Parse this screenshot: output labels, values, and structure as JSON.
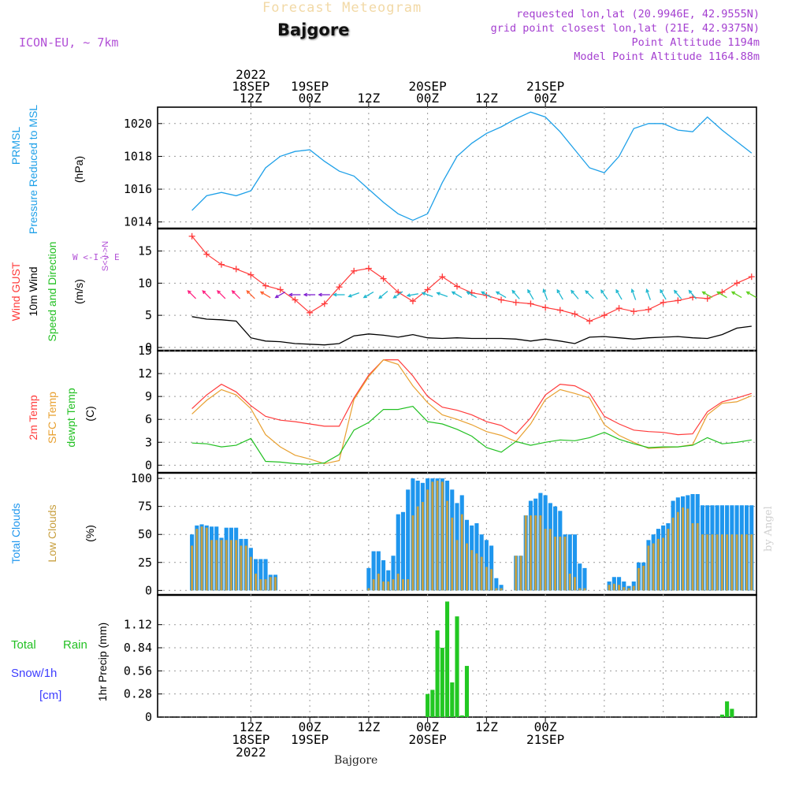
{
  "header": {
    "title": "Forecast Meteogram",
    "model": "ICON-EU, ~ 7km",
    "location": "Bajgore",
    "requested": "requested lon,lat (20.9946E, 42.9555N)",
    "grid_point": "grid point closest lon,lat (21E, 42.9375N)",
    "point_altitude": "Point Altitude 1194m",
    "model_altitude": "Model Point Altitude 1164.88m"
  },
  "footer": {
    "location": "Bajgore",
    "signature": "by Angel"
  },
  "time_axis": {
    "top": [
      {
        "label": [
          "2022",
          "18SEP",
          "12Z"
        ]
      },
      {
        "label": [
          "19SEP",
          "00Z"
        ]
      },
      {
        "label": [
          "12Z"
        ]
      },
      {
        "label": [
          "20SEP",
          "00Z"
        ]
      },
      {
        "label": [
          "12Z"
        ]
      },
      {
        "label": [
          "21SEP",
          "00Z"
        ]
      }
    ],
    "bottom": [
      {
        "label": [
          "12Z",
          "18SEP",
          "2022"
        ]
      },
      {
        "label": [
          "00Z",
          "19SEP"
        ]
      },
      {
        "label": [
          "12Z"
        ]
      },
      {
        "label": [
          "00Z",
          "20SEP"
        ]
      },
      {
        "label": [
          "12Z"
        ]
      },
      {
        "label": [
          "00Z",
          "21SEP"
        ]
      }
    ]
  },
  "panel_labels": {
    "pressure": {
      "lines": [
        "PRMSL",
        "Pressure Reduced to MSL"
      ],
      "unit": "(hPa)"
    },
    "wind": {
      "lines": [
        "Wind GUST",
        "10m Wind",
        "Speed and Direction"
      ],
      "unit": "(m/s)",
      "compass_ns": "S<-I->N",
      "compass_we": "W <-I-> E"
    },
    "temp": {
      "lines": [
        "2m Temp",
        "SFC Temp",
        "dewpt Temp"
      ],
      "unit": "(C)"
    },
    "clouds": {
      "lines": [
        "Total Clouds",
        "Low Clouds"
      ],
      "unit": "(%)"
    },
    "precip": {
      "lines": [
        "Total",
        "Rain",
        "Snow/1h",
        "[cm]"
      ],
      "unit": "1hr Precip (mm)"
    }
  },
  "colors": {
    "pressure": "#1ea0e8",
    "gust": "#ff3b3b",
    "wind": "#000000",
    "temp2m": "#ff3b3b",
    "tempsfc": "#e8a030",
    "dewpt": "#22c022",
    "total_clouds": "#1e96ee",
    "low_clouds": "#c8a040",
    "rain": "#22c822",
    "snow": "#3c3cff",
    "purple": "#b14fd6",
    "grid": "#999999"
  },
  "chart_data": [
    {
      "type": "line",
      "title": "PRMSL Pressure Reduced to MSL",
      "ylabel": "(hPa)",
      "x_hours": [
        0,
        3,
        6,
        9,
        12,
        15,
        18,
        21,
        24,
        27,
        30,
        33,
        36,
        39,
        42,
        45,
        48,
        51,
        54,
        57,
        60,
        63,
        66,
        69,
        72,
        75,
        78,
        81,
        84,
        87,
        90,
        93,
        96,
        99,
        102,
        105,
        108,
        111,
        114
      ],
      "series": [
        {
          "name": "PRMSL",
          "values": [
            1014.7,
            1015.6,
            1015.8,
            1015.6,
            1015.9,
            1017.3,
            1018.0,
            1018.3,
            1018.4,
            1017.7,
            1017.1,
            1016.8,
            1016.0,
            1015.2,
            1014.5,
            1014.1,
            1014.5,
            1016.4,
            1018.0,
            1018.8,
            1019.4,
            1019.8,
            1020.3,
            1020.7,
            1020.4,
            1019.5,
            1018.4,
            1017.3,
            1017.0,
            1018.0,
            1019.7,
            1020.0,
            1020.0,
            1019.6,
            1019.5,
            1020.4,
            1019.6,
            1018.9,
            1018.2
          ]
        }
      ],
      "yticks": [
        1014,
        1016,
        1018,
        1020
      ],
      "ylim": [
        1013.6,
        1021.0
      ],
      "grid": true
    },
    {
      "type": "line",
      "title": "Wind GUST / 10m Wind Speed and Direction",
      "ylabel": "(m/s)",
      "x_hours": [
        0,
        3,
        6,
        9,
        12,
        15,
        18,
        21,
        24,
        27,
        30,
        33,
        36,
        39,
        42,
        45,
        48,
        51,
        54,
        57,
        60,
        63,
        66,
        69,
        72,
        75,
        78,
        81,
        84,
        87,
        90,
        93,
        96,
        99,
        102,
        105,
        108,
        111,
        114
      ],
      "series": [
        {
          "name": "Wind GUST",
          "values": [
            17.3,
            14.5,
            12.9,
            12.2,
            11.3,
            9.6,
            9.0,
            7.4,
            5.4,
            6.8,
            9.4,
            11.9,
            12.3,
            10.7,
            8.6,
            7.2,
            9.0,
            11.0,
            9.5,
            8.5,
            8.1,
            7.4,
            7.0,
            6.8,
            6.2,
            5.8,
            5.2,
            4.1,
            5.0,
            6.1,
            5.6,
            5.9,
            7.0,
            7.3,
            7.8,
            7.6,
            8.6,
            10.0,
            11.0
          ]
        },
        {
          "name": "10m Wind",
          "values": [
            4.8,
            4.4,
            4.3,
            4.1,
            1.5,
            1.0,
            0.9,
            0.6,
            0.5,
            0.4,
            0.6,
            1.8,
            2.1,
            1.9,
            1.6,
            2.0,
            1.5,
            1.4,
            1.5,
            1.4,
            1.4,
            1.4,
            1.3,
            1.0,
            1.3,
            1.0,
            0.6,
            1.6,
            1.7,
            1.5,
            1.3,
            1.5,
            1.6,
            1.7,
            1.5,
            1.4,
            2.0,
            3.0,
            3.3
          ]
        }
      ],
      "wind_dir_deg": [
        315,
        315,
        315,
        315,
        315,
        300,
        240,
        270,
        270,
        270,
        270,
        250,
        240,
        230,
        235,
        260,
        290,
        290,
        300,
        300,
        300,
        300,
        320,
        330,
        340,
        330,
        320,
        315,
        325,
        330,
        340,
        340,
        330,
        320,
        320,
        300,
        300,
        300,
        300
      ],
      "yticks": [
        0,
        5,
        10,
        15
      ],
      "ylim": [
        -0.5,
        18.5
      ],
      "grid": true
    },
    {
      "type": "line",
      "title": "2m Temp / SFC Temp / dewpt Temp",
      "ylabel": "(C)",
      "x_hours": [
        0,
        3,
        6,
        9,
        12,
        15,
        18,
        21,
        24,
        27,
        30,
        33,
        36,
        39,
        42,
        45,
        48,
        51,
        54,
        57,
        60,
        63,
        66,
        69,
        72,
        75,
        78,
        81,
        84,
        87,
        90,
        93,
        96,
        99,
        102,
        105,
        108,
        111,
        114
      ],
      "series": [
        {
          "name": "2m Temp",
          "values": [
            7.4,
            9.2,
            10.6,
            9.6,
            7.8,
            6.4,
            5.9,
            5.7,
            5.4,
            5.1,
            5.1,
            8.8,
            11.8,
            13.8,
            13.8,
            11.7,
            9.0,
            7.6,
            7.2,
            6.6,
            5.7,
            5.2,
            4.1,
            6.2,
            9.2,
            10.6,
            10.4,
            9.4,
            6.4,
            5.4,
            4.6,
            4.4,
            4.3,
            4.0,
            4.1,
            7.0,
            8.3,
            8.8,
            9.4
          ]
        },
        {
          "name": "SFC Temp",
          "values": [
            6.7,
            8.5,
            9.9,
            9.2,
            7.4,
            4.0,
            2.4,
            1.3,
            0.8,
            0.2,
            0.6,
            8.6,
            11.6,
            13.8,
            13.2,
            10.4,
            8.2,
            6.6,
            6.0,
            5.3,
            4.4,
            3.9,
            3.1,
            5.4,
            8.6,
            9.9,
            9.4,
            8.8,
            5.3,
            3.9,
            3.0,
            2.2,
            2.3,
            2.4,
            2.7,
            6.6,
            8.1,
            8.3,
            9.1
          ]
        },
        {
          "name": "dewpt Temp",
          "values": [
            2.9,
            2.8,
            2.4,
            2.6,
            3.5,
            0.5,
            0.4,
            0.2,
            0.1,
            0.3,
            1.4,
            4.6,
            5.6,
            7.3,
            7.3,
            7.7,
            5.7,
            5.4,
            4.7,
            3.8,
            2.3,
            1.7,
            3.1,
            2.6,
            3.0,
            3.3,
            3.2,
            3.6,
            4.3,
            3.4,
            2.8,
            2.3,
            2.4,
            2.4,
            2.6,
            3.6,
            2.8,
            3.0,
            3.3
          ]
        }
      ],
      "yticks": [
        0,
        3,
        6,
        9,
        12,
        15
      ],
      "ylim": [
        -1.0,
        15.0
      ],
      "grid": true
    },
    {
      "type": "bar",
      "title": "Total Clouds / Low Clouds",
      "ylabel": "(%)",
      "x_hours": [
        0,
        1,
        2,
        3,
        4,
        5,
        6,
        7,
        8,
        9,
        10,
        11,
        12,
        13,
        14,
        15,
        16,
        17,
        18,
        19,
        20,
        21,
        22,
        23,
        24,
        25,
        26,
        27,
        28,
        29,
        30,
        31,
        32,
        33,
        34,
        35,
        36,
        37,
        38,
        39,
        40,
        41,
        42,
        43,
        44,
        45,
        46,
        47,
        48,
        49,
        50,
        51,
        52,
        53,
        54,
        55,
        56,
        57,
        58,
        59,
        60,
        61,
        62,
        63,
        64,
        65,
        66,
        67,
        68,
        69,
        70,
        71,
        72,
        73,
        74,
        75,
        76,
        77,
        78,
        79,
        80,
        81,
        82,
        83,
        84,
        85,
        86,
        87,
        88,
        89,
        90,
        91,
        92,
        93,
        94,
        95,
        96,
        97,
        98,
        99,
        100,
        101,
        102,
        103,
        104,
        105,
        106,
        107,
        108,
        109,
        110,
        111,
        112,
        113,
        114
      ],
      "series": [
        {
          "name": "Total Clouds",
          "values": [
            50,
            58,
            59,
            58,
            57,
            57,
            47,
            56,
            56,
            56,
            46,
            46,
            38,
            28,
            28,
            28,
            14,
            14,
            0,
            0,
            0,
            0,
            0,
            0,
            0,
            0,
            0,
            0,
            0,
            0,
            0,
            0,
            0,
            0,
            0,
            0,
            20,
            35,
            35,
            27,
            18,
            31,
            68,
            70,
            90,
            100,
            98,
            96,
            100,
            100,
            100,
            100,
            98,
            90,
            78,
            85,
            63,
            58,
            60,
            50,
            45,
            40,
            11,
            5,
            0,
            0,
            31,
            31,
            67,
            80,
            82,
            87,
            85,
            78,
            75,
            71,
            50,
            50,
            50,
            24,
            20,
            0,
            0,
            0,
            0,
            8,
            12,
            12,
            8,
            4,
            8,
            25,
            25,
            45,
            50,
            55,
            58,
            60,
            80,
            83,
            84,
            85,
            86,
            86,
            76,
            76,
            76,
            76,
            76,
            76,
            76,
            76,
            76,
            76,
            76
          ]
        },
        {
          "name": "Low Clouds",
          "values": [
            40,
            55,
            57,
            56,
            45,
            45,
            45,
            45,
            45,
            45,
            40,
            40,
            30,
            15,
            10,
            10,
            12,
            12,
            0,
            0,
            0,
            0,
            0,
            0,
            0,
            0,
            0,
            0,
            0,
            0,
            0,
            0,
            0,
            0,
            0,
            0,
            2,
            10,
            15,
            8,
            8,
            10,
            15,
            10,
            10,
            67,
            75,
            79,
            90,
            97,
            98,
            97,
            80,
            65,
            45,
            68,
            42,
            36,
            33,
            30,
            21,
            19,
            2,
            2,
            0,
            0,
            31,
            31,
            67,
            67,
            67,
            67,
            55,
            55,
            48,
            48,
            48,
            15,
            12,
            2,
            2,
            0,
            0,
            0,
            0,
            5,
            6,
            5,
            3,
            2,
            4,
            20,
            22,
            40,
            42,
            46,
            47,
            55,
            65,
            70,
            74,
            73,
            60,
            60,
            50,
            50,
            50,
            50,
            50,
            50,
            50,
            50,
            50,
            50,
            50
          ]
        }
      ],
      "yticks": [
        0,
        25,
        50,
        75,
        100
      ],
      "ylim": [
        -4,
        105
      ],
      "grid": true
    },
    {
      "type": "bar",
      "title": "1hr Precip",
      "ylabel": "1hr Precip (mm)",
      "x_hours": [
        48,
        49,
        50,
        51,
        52,
        53,
        54,
        55,
        56,
        57,
        108,
        109,
        110
      ],
      "series": [
        {
          "name": "Total Rain",
          "values": [
            0.28,
            0.33,
            1.05,
            0.84,
            1.4,
            0.42,
            1.22,
            0.02,
            0.62,
            0.0,
            0.03,
            0.19,
            0.1
          ]
        },
        {
          "name": "Snow/1h",
          "values": [
            0,
            0,
            0,
            0,
            0,
            0,
            0,
            0,
            0,
            0,
            0,
            0,
            0
          ]
        }
      ],
      "yticks": [
        0,
        0.28,
        0.56,
        0.84,
        1.12
      ],
      "ylim": [
        0,
        1.48
      ],
      "grid": true
    }
  ]
}
